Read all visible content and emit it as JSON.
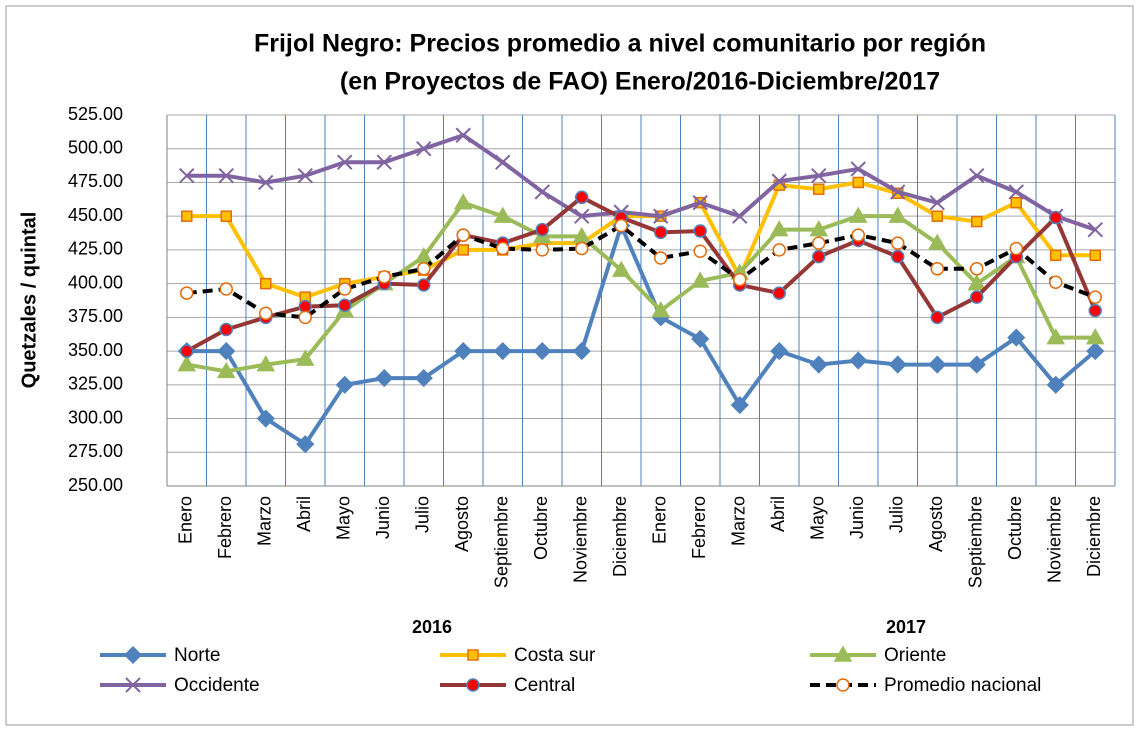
{
  "chart_data": {
    "type": "line",
    "title": [
      "Frijol Negro: Precios promedio a nivel comunitario por región",
      "(en Proyectos de FAO)  Enero/2016-Diciembre/2017"
    ],
    "y_label": "Quetzales / quintal",
    "categories": [
      "Enero",
      "Febrero",
      "Marzo",
      "Abril",
      "Mayo",
      "Junio",
      "Julio",
      "Agosto",
      "Septiembre",
      "Octubre",
      "Noviembre",
      "Diciembre",
      "Enero",
      "Febrero",
      "Marzo",
      "Abril",
      "Mayo",
      "Junio",
      "Julio",
      "Agosto",
      "Septiembre",
      "Octubre",
      "Noviembre",
      "Diciembre"
    ],
    "groups": [
      "2016",
      "2017"
    ],
    "ylim": [
      250,
      525
    ],
    "yticks": [
      {
        "value": 250,
        "label": "250.00"
      },
      {
        "value": 275,
        "label": "275.00"
      },
      {
        "value": 300,
        "label": "300.00"
      },
      {
        "value": 325,
        "label": "325.00"
      },
      {
        "value": 350,
        "label": "350.00"
      },
      {
        "value": 375,
        "label": "375.00"
      },
      {
        "value": 400,
        "label": "400.00"
      },
      {
        "value": 425,
        "label": "425.00"
      },
      {
        "value": 450,
        "label": "450.00"
      },
      {
        "value": 475,
        "label": "475.00"
      },
      {
        "value": 500,
        "label": "500.00"
      },
      {
        "value": 525,
        "label": "525.00"
      }
    ],
    "grid": true,
    "series": [
      {
        "name": "Norte",
        "color": "#4f81bd",
        "marker": "diamond",
        "marker_color": "#4f81bd",
        "values": [
          350,
          350,
          300,
          281,
          325,
          330,
          330,
          350,
          350,
          350,
          350,
          443,
          375,
          359,
          310,
          350,
          340,
          343,
          340,
          340,
          340,
          360,
          325,
          350
        ]
      },
      {
        "name": "Costa sur",
        "color": "#ffc000",
        "marker": "square",
        "marker_color": "#e46c0a",
        "values": [
          450,
          450,
          400,
          390,
          400,
          405,
          410,
          425,
          425,
          430,
          430,
          450,
          450,
          460,
          405,
          473,
          470,
          475,
          467,
          450,
          446,
          460,
          421,
          421
        ]
      },
      {
        "name": "Oriente",
        "color": "#9bbb59",
        "marker": "triangle",
        "marker_color": "#9bbb59",
        "values": [
          340,
          335,
          340,
          344,
          380,
          400,
          420,
          460,
          450,
          435,
          435,
          410,
          380,
          402,
          408,
          440,
          440,
          450,
          450,
          430,
          400,
          420,
          360,
          360
        ]
      },
      {
        "name": "Occidente",
        "color": "#8064a2",
        "marker": "x",
        "marker_color": "#8064a2",
        "values": [
          480,
          480,
          475,
          480,
          490,
          490,
          500,
          510,
          490,
          468,
          450,
          453,
          450,
          460,
          450,
          476,
          480,
          485,
          468,
          460,
          480,
          468,
          450,
          440
        ]
      },
      {
        "name": "Central",
        "color": "#953735",
        "marker": "circle",
        "marker_color": "#ff0000",
        "values": [
          350,
          366,
          375,
          383,
          384,
          400,
          399,
          436,
          430,
          440,
          464,
          449,
          438,
          439,
          399,
          393,
          420,
          432,
          420,
          375,
          390,
          420,
          449,
          380
        ]
      },
      {
        "name": "Promedio nacional",
        "color": "#000000",
        "dash": true,
        "marker": "circle-open",
        "marker_color": "#e46c0a",
        "values": [
          393,
          396,
          378,
          375,
          396,
          405,
          411,
          436,
          426,
          425,
          426,
          443,
          419,
          424,
          403,
          425,
          430,
          436,
          430,
          411,
          411,
          426,
          401,
          390
        ]
      }
    ]
  }
}
